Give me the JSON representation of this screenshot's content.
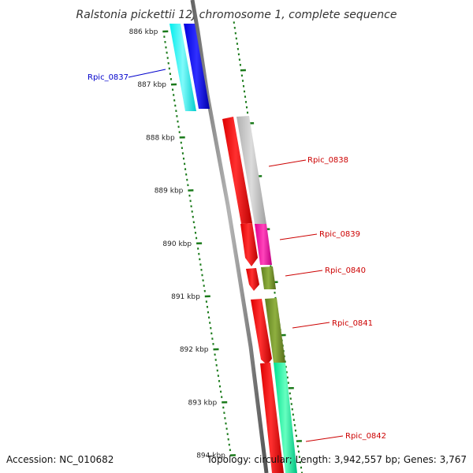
{
  "title": "Ralstonia pickettii 12J chromosome 1, complete sequence",
  "accession": "Accession: NC_010682",
  "topology": "Topology: circular; Length: 3,942,557 bp; Genes: 3,767",
  "ticks": [
    "886 kbp",
    "887 kbp",
    "888 kbp",
    "889 kbp",
    "890 kbp",
    "891 kbp",
    "892 kbp",
    "893 kbp",
    "894 kbp"
  ],
  "genes": [
    {
      "label": "Rpic_0837",
      "color": "#0000cc"
    },
    {
      "label": "Rpic_0838",
      "color": "#cc0000"
    },
    {
      "label": "Rpic_0839",
      "color": "#cc0000"
    },
    {
      "label": "Rpic_0840",
      "color": "#cc0000"
    },
    {
      "label": "Rpic_0841",
      "color": "#cc0000"
    },
    {
      "label": "Rpic_0842",
      "color": "#cc0000"
    }
  ],
  "colors": {
    "backbone": "#888888",
    "ticks": "#1a7a1a",
    "cyan": "#00e6e6",
    "blue": "#0000ee",
    "red": "#ee0000",
    "grey": "#bdbdbd",
    "magenta": "#ee00aa",
    "olive": "#6b8e23",
    "spring": "#00ee99"
  }
}
